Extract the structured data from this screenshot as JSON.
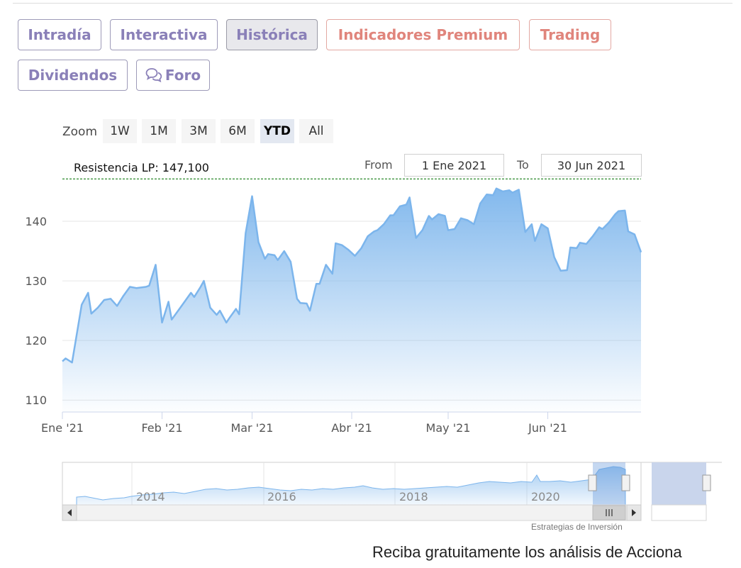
{
  "tabs": [
    {
      "label": "Intradía"
    },
    {
      "label": "Interactiva"
    },
    {
      "label": "Histórica"
    },
    {
      "label": "Indicadores Premium"
    },
    {
      "label": "Trading"
    },
    {
      "label": "Dividendos"
    },
    {
      "label": "Foro"
    }
  ],
  "zoom": {
    "label": "Zoom",
    "buttons": [
      "1W",
      "1M",
      "3M",
      "6M",
      "YTD",
      "All"
    ],
    "selected": "YTD"
  },
  "range": {
    "from_label": "From",
    "from_value": "1 Ene 2021",
    "to_label": "To",
    "to_value": "30 Jun 2021"
  },
  "footer": {
    "text": "Reciba gratuitamente los análisis de Acciona"
  },
  "credits": {
    "text": "Estrategias de Inversión"
  },
  "colors": {
    "accent": "#7b72b3",
    "premium": "#e0857c",
    "line": "#7cb5ec",
    "resistance": "#2e8b2e"
  },
  "chart_data": {
    "type": "area",
    "title": "",
    "xlabel": "",
    "ylabel": "",
    "ylim": [
      108,
      147.5
    ],
    "yticks": [
      110,
      120,
      130,
      140
    ],
    "x_range": [
      "2021-01-01",
      "2021-06-30"
    ],
    "xticks": [
      {
        "date": "2021-01-01",
        "label": "Ene '21"
      },
      {
        "date": "2021-02-01",
        "label": "Feb '21"
      },
      {
        "date": "2021-03-01",
        "label": "Mar '21"
      },
      {
        "date": "2021-04-01",
        "label": "Abr '21"
      },
      {
        "date": "2021-05-01",
        "label": "May '21"
      },
      {
        "date": "2021-06-01",
        "label": "Jun '21"
      }
    ],
    "grid": true,
    "plotline": {
      "value": 147.1,
      "label": "Resistencia LP: 147,100"
    },
    "series": [
      {
        "points": [
          [
            "2021-01-01",
            116.5
          ],
          [
            "2021-01-02",
            117.0
          ],
          [
            "2021-01-04",
            116.3
          ],
          [
            "2021-01-05",
            119.5
          ],
          [
            "2021-01-07",
            126.0
          ],
          [
            "2021-01-09",
            128.0
          ],
          [
            "2021-01-10",
            124.5
          ],
          [
            "2021-01-12",
            125.5
          ],
          [
            "2021-01-14",
            126.8
          ],
          [
            "2021-01-16",
            127.0
          ],
          [
            "2021-01-18",
            125.8
          ],
          [
            "2021-01-20",
            127.5
          ],
          [
            "2021-01-22",
            129.0
          ],
          [
            "2021-01-24",
            128.8
          ],
          [
            "2021-01-27",
            129.0
          ],
          [
            "2021-01-28",
            129.2
          ],
          [
            "2021-01-30",
            132.7
          ],
          [
            "2021-02-01",
            123.0
          ],
          [
            "2021-02-03",
            126.5
          ],
          [
            "2021-02-04",
            123.5
          ],
          [
            "2021-02-06",
            125.0
          ],
          [
            "2021-02-08",
            126.5
          ],
          [
            "2021-02-10",
            128.0
          ],
          [
            "2021-02-11",
            127.3
          ],
          [
            "2021-02-13",
            129.0
          ],
          [
            "2021-02-14",
            130.0
          ],
          [
            "2021-02-16",
            125.5
          ],
          [
            "2021-02-18",
            124.3
          ],
          [
            "2021-02-19",
            125.0
          ],
          [
            "2021-02-21",
            123.0
          ],
          [
            "2021-02-22",
            123.8
          ],
          [
            "2021-02-24",
            125.3
          ],
          [
            "2021-02-25",
            124.4
          ],
          [
            "2021-02-27",
            138.0
          ],
          [
            "2021-03-01",
            144.2
          ],
          [
            "2021-03-03",
            136.5
          ],
          [
            "2021-03-05",
            133.7
          ],
          [
            "2021-03-06",
            134.5
          ],
          [
            "2021-03-08",
            134.3
          ],
          [
            "2021-03-09",
            133.5
          ],
          [
            "2021-03-11",
            135.0
          ],
          [
            "2021-03-13",
            133.2
          ],
          [
            "2021-03-15",
            127.0
          ],
          [
            "2021-03-16",
            126.3
          ],
          [
            "2021-03-18",
            126.2
          ],
          [
            "2021-03-19",
            125.0
          ],
          [
            "2021-03-21",
            129.5
          ],
          [
            "2021-03-22",
            129.5
          ],
          [
            "2021-03-24",
            132.7
          ],
          [
            "2021-03-26",
            131.2
          ],
          [
            "2021-03-27",
            136.3
          ],
          [
            "2021-03-29",
            136.0
          ],
          [
            "2021-03-31",
            135.2
          ],
          [
            "2021-04-02",
            134.2
          ],
          [
            "2021-04-04",
            135.5
          ],
          [
            "2021-04-06",
            137.5
          ],
          [
            "2021-04-08",
            138.3
          ],
          [
            "2021-04-09",
            138.5
          ],
          [
            "2021-04-11",
            139.5
          ],
          [
            "2021-04-13",
            141.0
          ],
          [
            "2021-04-14",
            141.0
          ],
          [
            "2021-04-16",
            142.5
          ],
          [
            "2021-04-18",
            142.8
          ],
          [
            "2021-04-19",
            144.0
          ],
          [
            "2021-04-21",
            137.2
          ],
          [
            "2021-04-23",
            138.5
          ],
          [
            "2021-04-25",
            140.9
          ],
          [
            "2021-04-26",
            140.3
          ],
          [
            "2021-04-28",
            141.2
          ],
          [
            "2021-04-30",
            140.9
          ],
          [
            "2021-05-01",
            138.5
          ],
          [
            "2021-05-03",
            138.7
          ],
          [
            "2021-05-05",
            140.5
          ],
          [
            "2021-05-07",
            140.2
          ],
          [
            "2021-05-09",
            139.5
          ],
          [
            "2021-05-11",
            143.0
          ],
          [
            "2021-05-13",
            144.5
          ],
          [
            "2021-05-15",
            144.4
          ],
          [
            "2021-05-16",
            145.5
          ],
          [
            "2021-05-18",
            145.0
          ],
          [
            "2021-05-20",
            145.2
          ],
          [
            "2021-05-21",
            144.8
          ],
          [
            "2021-05-23",
            145.3
          ],
          [
            "2021-05-25",
            138.2
          ],
          [
            "2021-05-27",
            139.5
          ],
          [
            "2021-05-28",
            136.7
          ],
          [
            "2021-05-30",
            139.5
          ],
          [
            "2021-06-01",
            138.8
          ],
          [
            "2021-06-03",
            134.0
          ],
          [
            "2021-06-05",
            131.7
          ],
          [
            "2021-06-07",
            131.8
          ],
          [
            "2021-06-08",
            135.6
          ],
          [
            "2021-06-10",
            135.5
          ],
          [
            "2021-06-11",
            136.4
          ],
          [
            "2021-06-13",
            136.2
          ],
          [
            "2021-06-15",
            137.5
          ],
          [
            "2021-06-17",
            139.0
          ],
          [
            "2021-06-18",
            138.7
          ],
          [
            "2021-06-20",
            139.8
          ],
          [
            "2021-06-22",
            141.2
          ],
          [
            "2021-06-23",
            141.7
          ],
          [
            "2021-06-25",
            141.8
          ],
          [
            "2021-06-26",
            138.3
          ],
          [
            "2021-06-28",
            137.8
          ],
          [
            "2021-06-30",
            134.8
          ]
        ]
      }
    ],
    "navigator": {
      "year_labels": [
        "2014",
        "2016",
        "2018",
        "2020"
      ]
    }
  }
}
